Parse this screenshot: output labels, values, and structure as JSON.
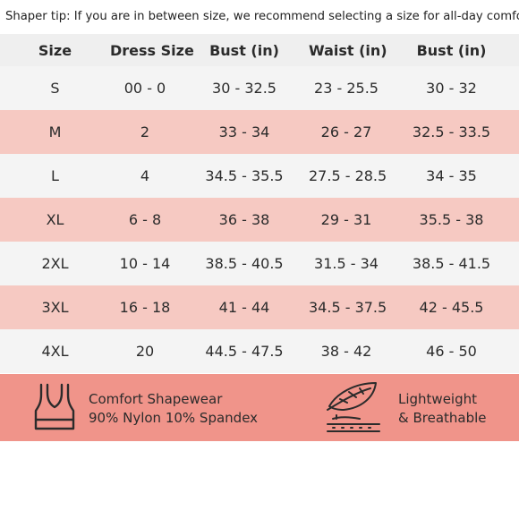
{
  "tip": "Shaper tip: If you are in between size, we recommend selecting a size for all-day comfort.",
  "table": {
    "headers": [
      "Size",
      "Dress Size",
      "Bust (in)",
      "Waist (in)",
      "Bust (in)"
    ],
    "rows": [
      [
        "S",
        "00 - 0",
        "30 - 32.5",
        "23 - 25.5",
        "30 - 32"
      ],
      [
        "M",
        "2",
        "33 - 34",
        "26 - 27",
        "32.5 - 33.5"
      ],
      [
        "L",
        "4",
        "34.5 - 35.5",
        "27.5 - 28.5",
        "34 - 35"
      ],
      [
        "XL",
        "6 - 8",
        "36 -  38",
        "29 - 31",
        "35.5 - 38"
      ],
      [
        "2XL",
        "10 - 14",
        "38.5 - 40.5",
        "31.5 - 34",
        "38.5 - 41.5"
      ],
      [
        "3XL",
        "16 - 18",
        "41 - 44",
        "34.5 - 37.5",
        "42 - 45.5"
      ],
      [
        "4XL",
        "20",
        "44.5 - 47.5",
        "38 - 42",
        "46 - 50"
      ]
    ]
  },
  "features": {
    "left": {
      "icon": "sports-bra-icon",
      "line1": "Comfort Shapewear",
      "line2": "90% Nylon 10% Spandex"
    },
    "right": {
      "icon": "feather-icon",
      "line1": "Lightweight",
      "line2": "& Breathable"
    }
  },
  "colors": {
    "pink_row": "#f6c9c2",
    "gray_row": "#f4f4f4",
    "footer": "#f0948a"
  }
}
